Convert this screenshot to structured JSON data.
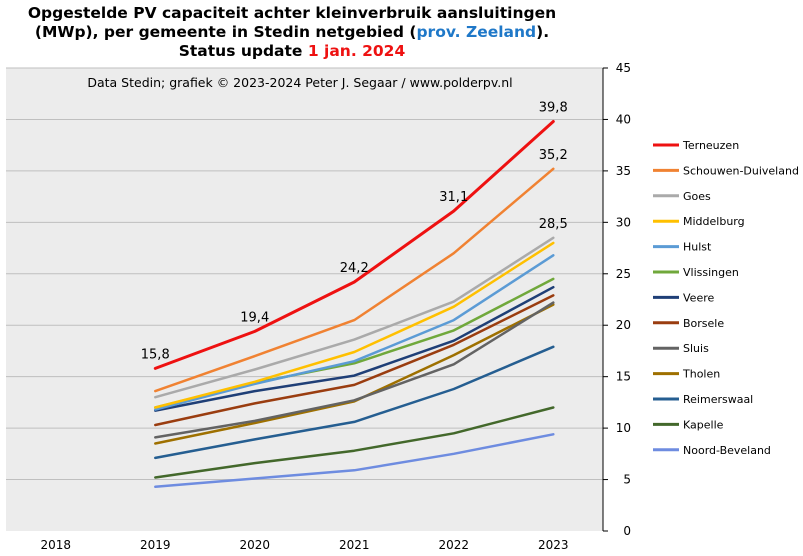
{
  "chart_data": {
    "type": "line",
    "title": {
      "line1": "Opgestelde PV capaciteit achter kleinverbruik aansluitingen",
      "line2_pre": "(MWp), per gemeente in Stedin netgebied (",
      "line2_highlight": "prov. Zeeland",
      "line2_post": ").",
      "line3_pre": "Status update ",
      "line3_highlight": "1 jan. 2024"
    },
    "subtitle": "Data Stedin; grafiek © 2023-2024 Peter J. Segaar / www.polderpv.nl",
    "x": [
      "2018",
      "2019",
      "2020",
      "2021",
      "2022",
      "2023"
    ],
    "ylim": [
      0,
      45
    ],
    "yticks": [
      "0",
      "5",
      "10",
      "15",
      "20",
      "25",
      "30",
      "35",
      "40",
      "45"
    ],
    "grid": true,
    "legend_position": "right",
    "series": [
      {
        "name": "Terneuzen",
        "color": "#ee1111",
        "values": [
          null,
          15.8,
          19.4,
          24.2,
          31.1,
          39.8
        ]
      },
      {
        "name": "Schouwen-Duiveland",
        "color": "#f08232",
        "values": [
          null,
          13.6,
          17.0,
          20.5,
          27.0,
          35.2
        ]
      },
      {
        "name": "Goes",
        "color": "#aaaaaa",
        "values": [
          null,
          13.0,
          15.7,
          18.6,
          22.3,
          28.5
        ]
      },
      {
        "name": "Middelburg",
        "color": "#ffc000",
        "values": [
          null,
          12.0,
          14.5,
          17.4,
          21.8,
          28.0
        ]
      },
      {
        "name": "Hulst",
        "color": "#5b9bd5",
        "values": [
          null,
          11.8,
          14.3,
          16.5,
          20.5,
          26.8
        ]
      },
      {
        "name": "Vlissingen",
        "color": "#70a83b",
        "values": [
          null,
          12.0,
          14.4,
          16.3,
          19.5,
          24.5
        ]
      },
      {
        "name": "Veere",
        "color": "#1f3f77",
        "values": [
          null,
          11.7,
          13.6,
          15.1,
          18.5,
          23.7
        ]
      },
      {
        "name": "Borsele",
        "color": "#9a3d10",
        "values": [
          null,
          10.3,
          12.4,
          14.2,
          18.1,
          22.9
        ]
      },
      {
        "name": "Sluis",
        "color": "#636363",
        "values": [
          null,
          9.1,
          10.7,
          12.7,
          16.2,
          22.2
        ]
      },
      {
        "name": "Tholen",
        "color": "#9e7000",
        "values": [
          null,
          8.5,
          10.5,
          12.6,
          17.1,
          22.0
        ]
      },
      {
        "name": "Reimerswaal",
        "color": "#255e91",
        "values": [
          null,
          7.1,
          8.9,
          10.6,
          13.8,
          17.9
        ]
      },
      {
        "name": "Kapelle",
        "color": "#43682b",
        "values": [
          null,
          5.2,
          6.6,
          7.8,
          9.5,
          12.0
        ]
      },
      {
        "name": "Noord-Beveland",
        "color": "#6e8ce0",
        "values": [
          null,
          4.3,
          5.1,
          5.9,
          7.5,
          9.4
        ]
      }
    ],
    "annotations": [
      {
        "text": "15,8",
        "x": "2019",
        "y": 15.8
      },
      {
        "text": "19,4",
        "x": "2020",
        "y": 19.4
      },
      {
        "text": "24,2",
        "x": "2021",
        "y": 24.2
      },
      {
        "text": "31,1",
        "x": "2022",
        "y": 31.1
      },
      {
        "text": "39,8",
        "x": "2023",
        "y": 39.8
      },
      {
        "text": "35,2",
        "x": "2023",
        "y": 35.2
      },
      {
        "text": "28,5",
        "x": "2023",
        "y": 28.5
      }
    ],
    "title_highlight_colors": {
      "province": "#1f78c8",
      "date": "#ee1111"
    }
  }
}
